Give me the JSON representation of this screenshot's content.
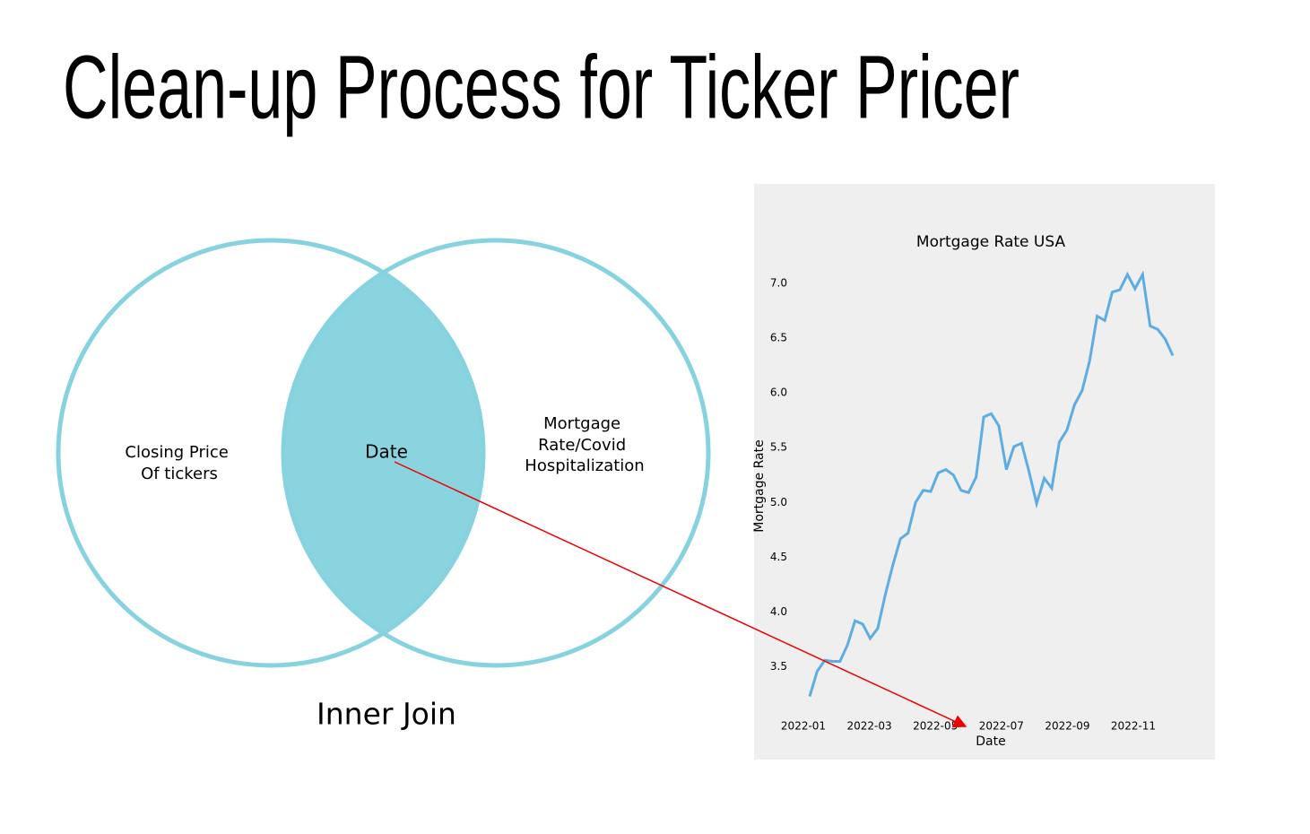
{
  "title": "Clean-up Process for Ticker Pricer",
  "venn": {
    "left_label": [
      "Closing Price",
      "Of tickers"
    ],
    "center_label": "Date",
    "right_label": [
      "Mortgage",
      "Rate/Covid",
      "Hospitalization"
    ],
    "caption": "Inner Join"
  },
  "chart_data": {
    "type": "line",
    "title": "Mortgage Rate USA",
    "x_label": "Date",
    "y_label": "Mortgage Rate",
    "color": "#5dade2",
    "values": [
      3.23,
      3.46,
      3.56,
      3.55,
      3.55,
      3.7,
      3.92,
      3.89,
      3.76,
      3.85,
      4.16,
      4.43,
      4.67,
      4.72,
      5.0,
      5.11,
      5.1,
      5.27,
      5.3,
      5.25,
      5.11,
      5.09,
      5.23,
      5.78,
      5.81,
      5.7,
      5.3,
      5.51,
      5.54,
      5.28,
      4.99,
      5.22,
      5.13,
      5.55,
      5.66,
      5.89,
      6.02,
      6.29,
      6.7,
      6.66,
      6.92,
      6.94,
      7.08,
      6.95,
      7.08,
      6.61,
      6.58,
      6.49,
      6.34
    ],
    "ylim": [
      3.12,
      7.13
    ],
    "yticks": [
      {
        "value": 3.5,
        "label": "3.5"
      },
      {
        "value": 4,
        "label": "4.0"
      },
      4.5,
      {
        "value": 5,
        "label": "5.0"
      },
      5.5,
      {
        "value": 6,
        "label": "6.0"
      },
      6.5,
      {
        "value": 7,
        "label": "7.0"
      }
    ],
    "xticks": [
      "2022-01",
      "2022-03",
      "2022-05",
      "2022-07",
      "2022-09",
      "2022-11"
    ]
  }
}
